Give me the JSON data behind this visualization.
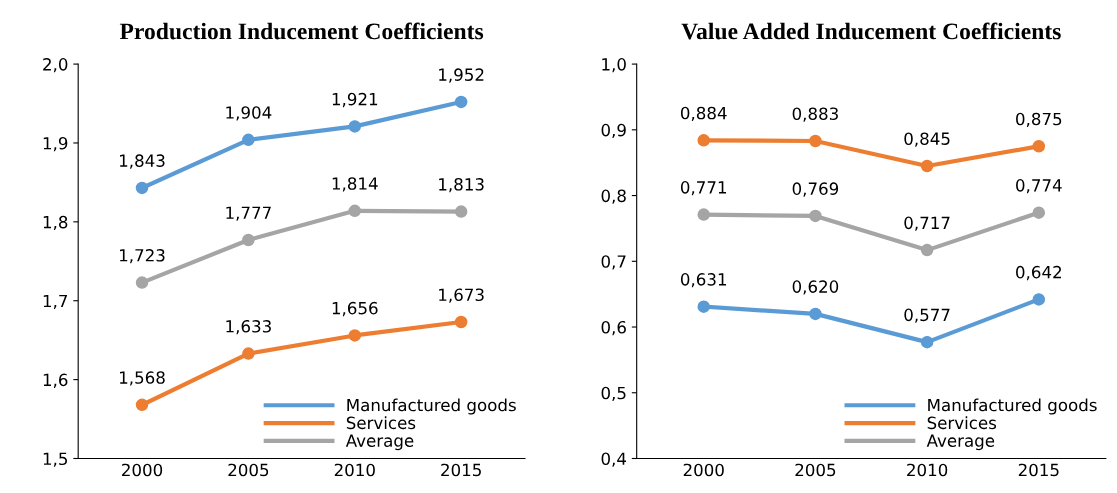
{
  "chart_data": [
    {
      "type": "line",
      "title": "Production Inducement Coefficients",
      "categories": [
        "2000",
        "2005",
        "2010",
        "2015"
      ],
      "ylim": [
        1.5,
        2.0
      ],
      "yticks": [
        {
          "value": 1.5,
          "label": "1,5"
        },
        {
          "value": 1.6,
          "label": "1,6"
        },
        {
          "value": 1.7,
          "label": "1,7"
        },
        {
          "value": 1.8,
          "label": "1,8"
        },
        {
          "value": 1.9,
          "label": "1,9"
        },
        {
          "value": 2.0,
          "label": "2,0"
        }
      ],
      "marker": "circle",
      "line_style": "solid",
      "legend": "bottom right",
      "grid": false,
      "series": [
        {
          "name": "Manufactured goods",
          "color": "#5b9bd5",
          "values": [
            1.843,
            1.904,
            1.921,
            1.952
          ],
          "value_labels": [
            "1,843",
            "1,904",
            "1,921",
            "1,952"
          ]
        },
        {
          "name": "Services",
          "color": "#ed7d31",
          "values": [
            1.568,
            1.633,
            1.656,
            1.673
          ],
          "value_labels": [
            "1,568",
            "1,633",
            "1,656",
            "1,673"
          ]
        },
        {
          "name": "Average",
          "color": "#a5a5a5",
          "values": [
            1.723,
            1.777,
            1.814,
            1.813
          ],
          "value_labels": [
            "1,723",
            "1,777",
            "1,814",
            "1,813"
          ]
        }
      ]
    },
    {
      "type": "line",
      "title": "Value Added Inducement Coefficients",
      "categories": [
        "2000",
        "2005",
        "2010",
        "2015"
      ],
      "ylim": [
        0.4,
        1.0
      ],
      "yticks": [
        {
          "value": 0.4,
          "label": "0,4"
        },
        {
          "value": 0.5,
          "label": "0,5"
        },
        {
          "value": 0.6,
          "label": "0,6"
        },
        {
          "value": 0.7,
          "label": "0,7"
        },
        {
          "value": 0.8,
          "label": "0,8"
        },
        {
          "value": 0.9,
          "label": "0,9"
        },
        {
          "value": 1.0,
          "label": "1,0"
        }
      ],
      "marker": "circle",
      "line_style": "solid",
      "legend": "bottom right",
      "grid": false,
      "series": [
        {
          "name": "Manufactured goods",
          "color": "#5b9bd5",
          "values": [
            0.631,
            0.62,
            0.577,
            0.642
          ],
          "value_labels": [
            "0,631",
            "0,620",
            "0,577",
            "0,642"
          ]
        },
        {
          "name": "Services",
          "color": "#ed7d31",
          "values": [
            0.884,
            0.883,
            0.845,
            0.875
          ],
          "value_labels": [
            "0,884",
            "0,883",
            "0,845",
            "0,875"
          ]
        },
        {
          "name": "Average",
          "color": "#a5a5a5",
          "values": [
            0.771,
            0.769,
            0.717,
            0.774
          ],
          "value_labels": [
            "0,771",
            "0,769",
            "0,717",
            "0,774"
          ]
        }
      ]
    }
  ]
}
